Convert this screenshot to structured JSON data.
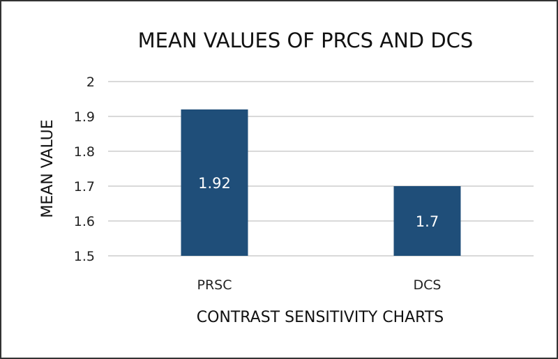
{
  "chart_data": {
    "type": "bar",
    "title": "MEAN VALUES OF PRCS AND DCS",
    "xlabel": "CONTRAST SENSITIVITY CHARTS",
    "ylabel": "MEAN VALUE",
    "categories": [
      "PRSC",
      "DCS"
    ],
    "values": [
      1.92,
      1.7
    ],
    "data_labels": [
      "1.92",
      "1.7"
    ],
    "ylim": [
      1.5,
      2
    ],
    "yticks": [
      1.5,
      1.6,
      1.7,
      1.8,
      1.9,
      2
    ],
    "ytick_labels": [
      "1.5",
      "1.6",
      "1.7",
      "1.8",
      "1.9",
      "2"
    ],
    "grid": true,
    "legend": "none",
    "bar_color": "#1f4e79"
  }
}
